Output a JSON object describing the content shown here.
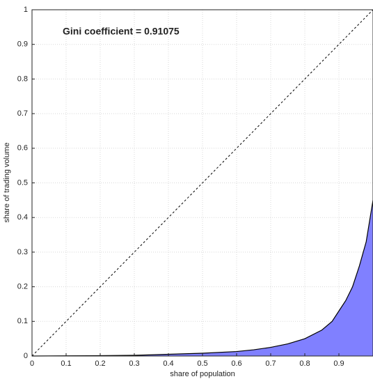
{
  "chart_data": {
    "type": "area",
    "annotation": "Gini coefficient = 0.91075",
    "x_label": "share of population",
    "y_label": "share of trading volume",
    "x": [
      0,
      0.1,
      0.2,
      0.3,
      0.4,
      0.5,
      0.6,
      0.65,
      0.7,
      0.75,
      0.8,
      0.85,
      0.88,
      0.9,
      0.92,
      0.94,
      0.96,
      0.98,
      1.0
    ],
    "values": [
      0,
      0.0005,
      0.001,
      0.002,
      0.005,
      0.008,
      0.013,
      0.018,
      0.025,
      0.035,
      0.05,
      0.075,
      0.1,
      0.13,
      0.16,
      0.2,
      0.26,
      0.33,
      0.45
    ],
    "color": "#000000",
    "fill": "#8080ff",
    "reference_line": {
      "x": [
        0,
        1
      ],
      "values": [
        0,
        1
      ],
      "color": "#000000"
    },
    "xlim": [
      0,
      1
    ],
    "ylim": [
      0,
      1
    ],
    "xticks": [
      0,
      0.1,
      0.2,
      0.3,
      0.4,
      0.5,
      0.6,
      0.7,
      0.8,
      0.9
    ],
    "yticks": [
      0,
      0.1,
      0.2,
      0.3,
      0.4,
      0.5,
      0.6,
      0.7,
      0.8,
      0.9,
      1
    ],
    "grid": true
  }
}
